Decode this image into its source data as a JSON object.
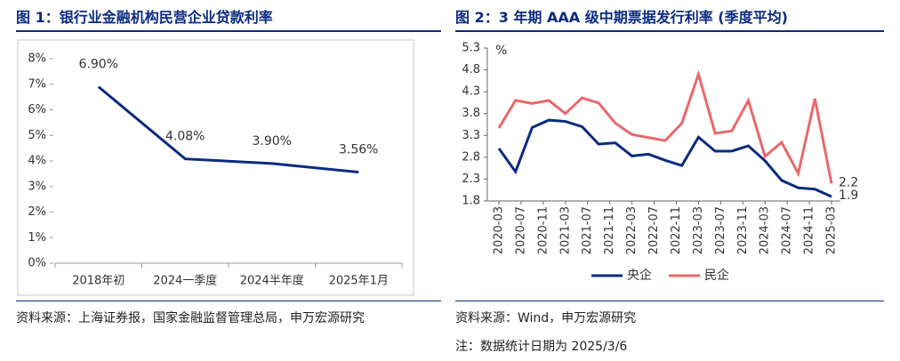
{
  "chart_data": [
    {
      "type": "line",
      "title": "图 1：银行业金融机构民营企业贷款利率",
      "categories": [
        "2018年初",
        "2024一季度",
        "2024半年度",
        "2025年1月"
      ],
      "values": [
        6.9,
        4.08,
        3.9,
        3.56
      ],
      "value_labels": [
        "6.90%",
        "4.08%",
        "3.90%",
        "3.56%"
      ],
      "color": "#0b2b80",
      "ylim": [
        0,
        8
      ],
      "yticks": [
        {
          "value": 0,
          "label": "0%"
        },
        {
          "value": 1,
          "label": "1%"
        },
        {
          "value": 2,
          "label": "2%"
        },
        {
          "value": 3,
          "label": "3%"
        },
        {
          "value": 4,
          "label": "4%"
        },
        {
          "value": 5,
          "label": "5%"
        },
        {
          "value": 6,
          "label": "6%"
        },
        {
          "value": 7,
          "label": "7%"
        },
        {
          "value": 8,
          "label": "8%"
        }
      ],
      "source": "资料来源：上海证券报，国家金融监督管理总局，申万宏源研究"
    },
    {
      "type": "timeline",
      "title": "图 2：3 年期 AAA 级中期票据发行利率 (季度平均)",
      "y_label": "%",
      "x": [
        "2020-03",
        "2020-06",
        "2020-09",
        "2020-12",
        "2021-03",
        "2021-06",
        "2021-09",
        "2021-12",
        "2022-03",
        "2022-06",
        "2022-09",
        "2022-12",
        "2023-03",
        "2023-06",
        "2023-09",
        "2023-12",
        "2024-03",
        "2024-06",
        "2024-09",
        "2024-12",
        "2025-03"
      ],
      "series": [
        {
          "name": "央企",
          "color": "#0b2b80",
          "values": [
            3.0,
            2.47,
            3.48,
            3.65,
            3.62,
            3.5,
            3.1,
            3.13,
            2.83,
            2.87,
            2.73,
            2.61,
            3.26,
            2.94,
            2.94,
            3.06,
            2.72,
            2.27,
            2.1,
            2.07,
            1.9
          ]
        },
        {
          "name": "民企",
          "color": "#e8696b",
          "values": [
            3.47,
            4.1,
            4.03,
            4.1,
            3.8,
            4.16,
            4.04,
            3.58,
            3.32,
            3.25,
            3.18,
            3.58,
            4.7,
            3.35,
            3.4,
            4.1,
            2.82,
            3.14,
            2.43,
            4.14,
            2.2
          ]
        }
      ],
      "data_labels": "last",
      "xlim": [
        "2020-03",
        "2025-03"
      ],
      "xticks": [
        "2020-03",
        "2020-07",
        "2020-11",
        "2021-03",
        "2021-07",
        "2021-11",
        "2022-03",
        "2022-07",
        "2022-11",
        "2023-03",
        "2023-07",
        "2023-11",
        "2024-03",
        "2024-07",
        "2024-11",
        "2025-03"
      ],
      "ylim": [
        1.8,
        5.3
      ],
      "yticks": [
        1.8,
        2.3,
        2.8,
        3.3,
        3.8,
        4.3,
        4.8,
        5.3
      ],
      "legend": "bottom",
      "source": "资料来源：Wind，申万宏源研究",
      "note": "注：数据统计日期为 2025/3/6"
    }
  ]
}
